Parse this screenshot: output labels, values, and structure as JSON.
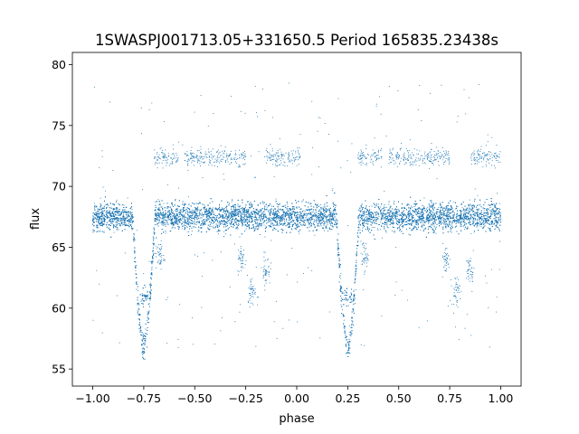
{
  "chart_data": {
    "type": "scatter",
    "title": "1SWASPJ001713.05+331650.5 Period 165835.23438s",
    "xlabel": "phase",
    "ylabel": "flux",
    "xlim": [
      -1.1,
      1.1
    ],
    "ylim": [
      53.6,
      81.0
    ],
    "xticks": [
      -1.0,
      -0.75,
      -0.5,
      -0.25,
      0.0,
      0.25,
      0.5,
      0.75,
      1.0
    ],
    "xtick_labels": [
      "−1.00",
      "−0.75",
      "−0.50",
      "−0.25",
      "0.00",
      "0.25",
      "0.50",
      "0.75",
      "1.00"
    ],
    "yticks": [
      55,
      60,
      65,
      70,
      75,
      80
    ],
    "ytick_labels": [
      "55",
      "60",
      "65",
      "70",
      "75",
      "80"
    ],
    "grid": false,
    "marker_color": "#1f77b4",
    "x_range": [
      -1.0,
      1.0
    ],
    "period_in_phase": 1.0,
    "baseline_flux": 67.5,
    "baseline_spread": 0.55,
    "eclipse_center_phase": -0.75,
    "eclipse_half_width": 0.055,
    "eclipse_min_flux": 56.8,
    "eclipse_shoulder_flux": 61.0,
    "upper_band_flux": 72.4,
    "upper_band_phase_ranges": [
      [
        -0.7,
        -0.58
      ],
      [
        -0.55,
        -0.25
      ],
      [
        -0.15,
        0.02
      ],
      [
        0.3,
        0.42
      ],
      [
        0.45,
        0.75
      ],
      [
        0.85,
        1.0
      ]
    ],
    "scatter_dips": [
      {
        "phase": -0.27,
        "flux": 64.0
      },
      {
        "phase": -0.22,
        "flux": 61.4
      },
      {
        "phase": -0.15,
        "flux": 63.1
      },
      {
        "phase": 0.73,
        "flux": 64.0
      },
      {
        "phase": 0.78,
        "flux": 61.4
      },
      {
        "phase": 0.85,
        "flux": 63.1
      },
      {
        "phase": -0.67,
        "flux": 64.3
      },
      {
        "phase": 0.33,
        "flux": 64.3
      }
    ],
    "n_points": 14000
  }
}
